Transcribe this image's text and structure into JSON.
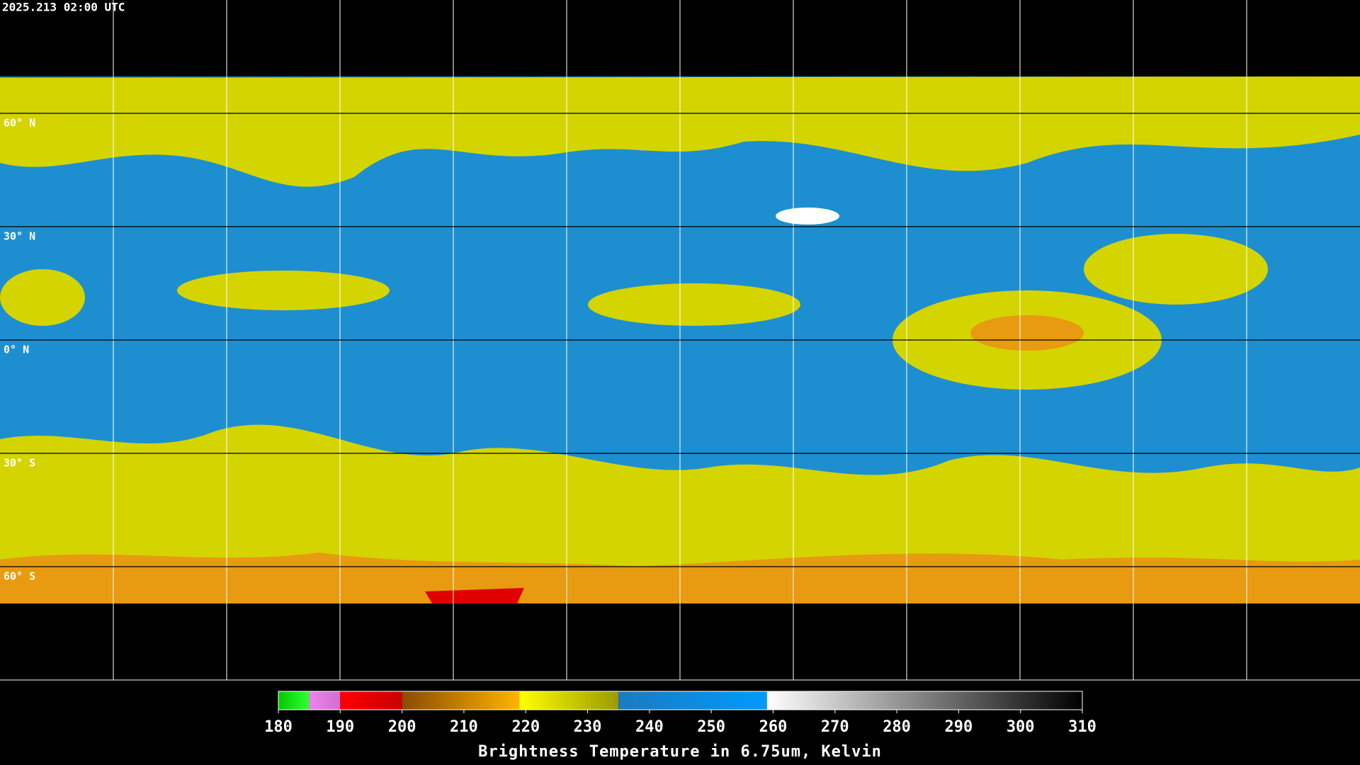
{
  "header": {
    "timestamp": "2025.213 02:00 UTC"
  },
  "map": {
    "lat_lines": [
      {
        "value": 60,
        "label": "60° N"
      },
      {
        "value": 30,
        "label": "30° N"
      },
      {
        "value": 0,
        "label": "0° N"
      },
      {
        "value": -30,
        "label": "30° S"
      },
      {
        "value": -60,
        "label": "60° S"
      }
    ]
  },
  "colorbar": {
    "title": "Brightness Temperature in 6.75um, Kelvin",
    "range": [
      180,
      310
    ],
    "ticks": [
      180,
      190,
      200,
      210,
      220,
      230,
      240,
      250,
      260,
      270,
      280,
      290,
      300,
      310
    ],
    "segments": [
      {
        "from": 180,
        "to": 185,
        "colors": [
          "#00c800",
          "#33ff33"
        ]
      },
      {
        "from": 185,
        "to": 190,
        "colors": [
          "#ee82ee",
          "#d070d0"
        ]
      },
      {
        "from": 190,
        "to": 200,
        "colors": [
          "#ff0000",
          "#c80000"
        ]
      },
      {
        "from": 200,
        "to": 219,
        "colors": [
          "#8c4a00",
          "#ffb400"
        ]
      },
      {
        "from": 219,
        "to": 235,
        "colors": [
          "#ffff00",
          "#9a9a00"
        ]
      },
      {
        "from": 235,
        "to": 259,
        "colors": [
          "#1a7ac0",
          "#009aff"
        ]
      },
      {
        "from": 259,
        "to": 310,
        "colors": [
          "#ffffff",
          "#000000"
        ]
      }
    ]
  }
}
